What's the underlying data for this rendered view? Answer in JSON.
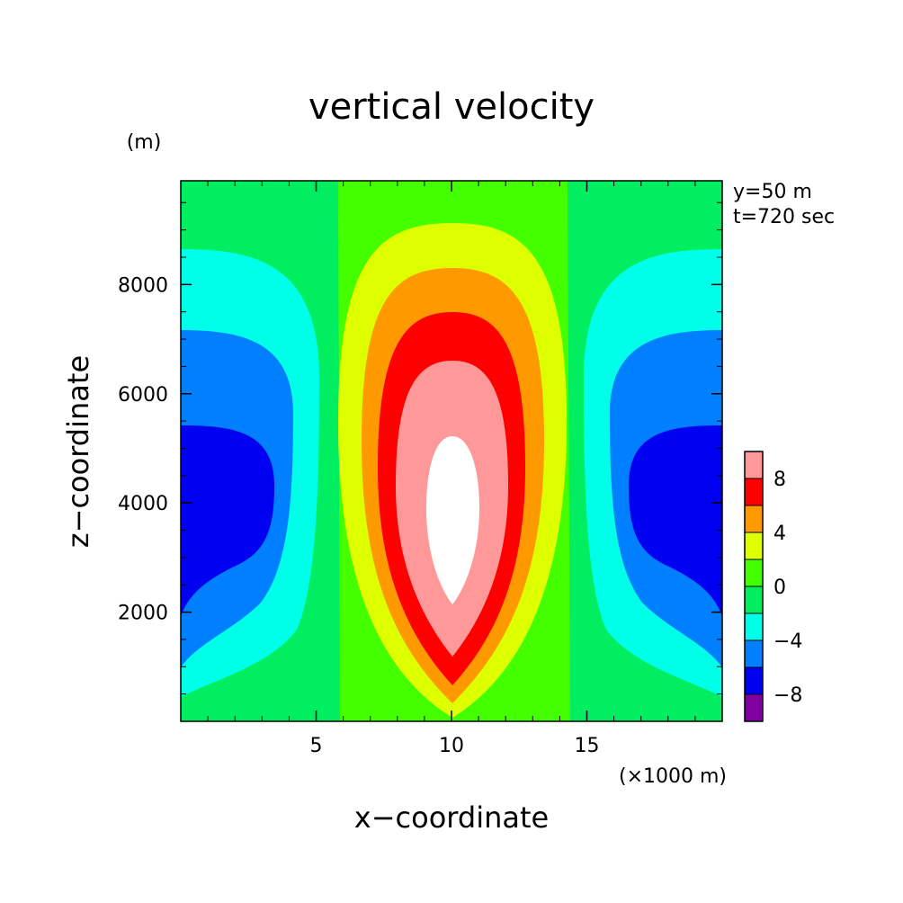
{
  "chart_data": {
    "type": "heatmap",
    "title": "vertical velocity",
    "xlabel": "x−coordinate",
    "ylabel": "z−coordinate",
    "x_unit": "(×1000 m)",
    "y_unit": "(m)",
    "annotations": [
      "y=50 m",
      "t=720 sec"
    ],
    "xlim": [
      0,
      20000
    ],
    "ylim": [
      0,
      9900
    ],
    "x_ticks": [
      5000,
      10000,
      15000
    ],
    "x_tick_labels": [
      "5",
      "10",
      "15"
    ],
    "y_ticks": [
      2000,
      4000,
      6000,
      8000
    ],
    "y_tick_labels": [
      "2000",
      "4000",
      "6000",
      "8000"
    ],
    "grid": false,
    "legend": "right",
    "colorbar": {
      "levels": [
        -10,
        -8,
        -6,
        -4,
        -2,
        0,
        2,
        4,
        6,
        8,
        10
      ],
      "colors": [
        "#8000a0",
        "#0000f0",
        "#0080ff",
        "#00ffe8",
        "#00ee60",
        "#44ff00",
        "#ddff00",
        "#ff9900",
        "#ff0000",
        "#ff9999"
      ],
      "tick_labels": [
        "−8",
        "−4",
        "0",
        "4",
        "8"
      ],
      "tick_values": [
        -8,
        -4,
        0,
        4,
        8
      ]
    },
    "field": {
      "description_of_bands": "contour fill bands (data units: x in m, z in m)",
      "bands": [
        {
          "range": [
            -2,
            0
          ],
          "color": "#00ee60",
          "region": "background"
        },
        {
          "range": [
            0,
            2
          ],
          "color": "#44ff00",
          "x_extent": [
            5900,
            14300
          ]
        },
        {
          "range": [
            2,
            4
          ],
          "color": "#ddff00",
          "z_extent": [
            200,
            9100
          ]
        },
        {
          "range": [
            4,
            6
          ],
          "color": "#ff9900",
          "z_extent": [
            500,
            8300
          ]
        },
        {
          "range": [
            6,
            8
          ],
          "color": "#ff0000",
          "z_extent": [
            700,
            7500
          ]
        },
        {
          "range": [
            8,
            10
          ],
          "color": "#ff9999",
          "z_extent": [
            1200,
            6600
          ]
        },
        {
          "range": [
            10,
            12
          ],
          "color": "#ffffff",
          "z_extent": [
            2100,
            5300
          ]
        },
        {
          "range": [
            -4,
            -2
          ],
          "color": "#00ffe8",
          "z_extent": [
            400,
            8700
          ]
        },
        {
          "range": [
            -6,
            -4
          ],
          "color": "#0080ff",
          "z_extent": [
            1000,
            7200
          ]
        },
        {
          "range": [
            -8,
            -6
          ],
          "color": "#0000f0",
          "z_extent": [
            2000,
            5500
          ]
        }
      ]
    }
  }
}
